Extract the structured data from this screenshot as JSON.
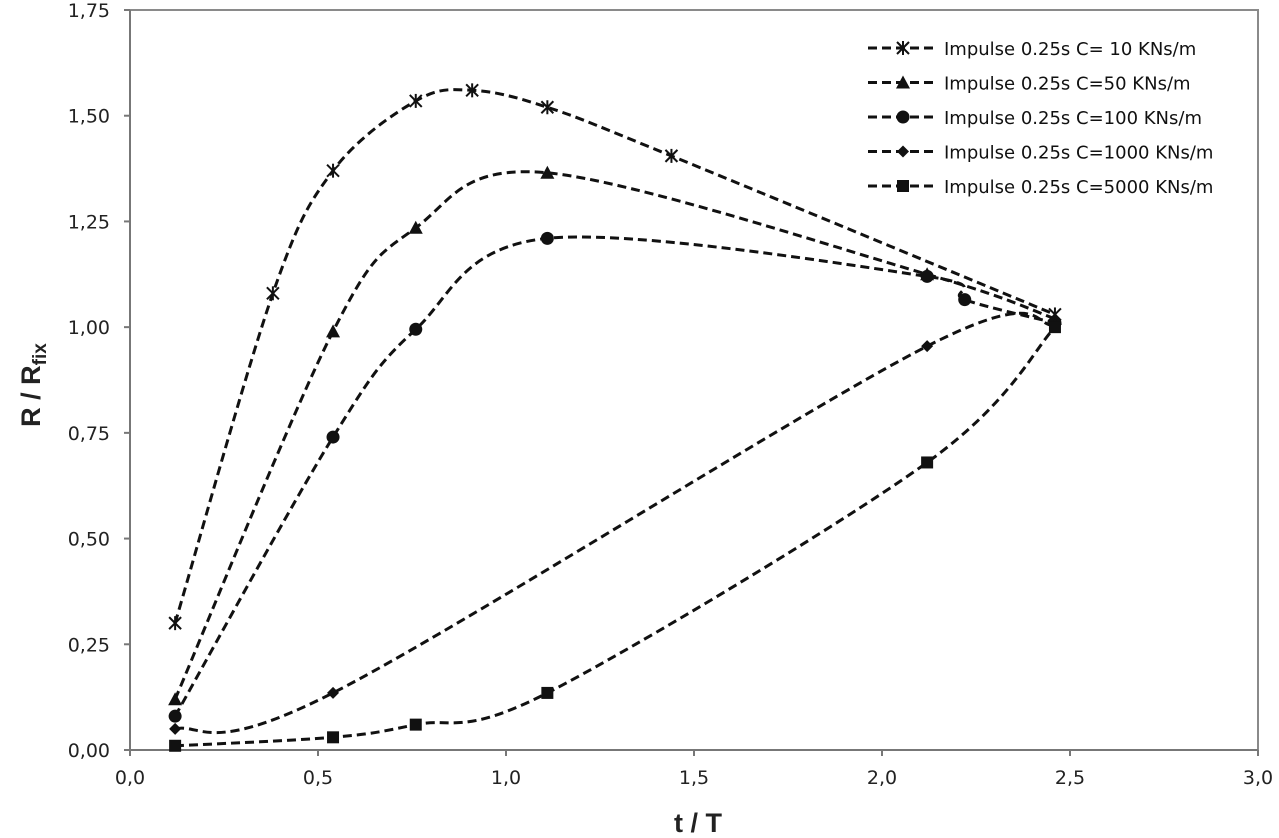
{
  "chart_data": {
    "type": "line",
    "xlabel": "t / T",
    "ylabel": {
      "main": "R / R",
      "sub": "fix"
    },
    "xlim": [
      0,
      3.0
    ],
    "ylim": [
      0,
      1.75
    ],
    "x_ticks": [
      "0,0",
      "0,5",
      "1,0",
      "1,5",
      "2,0",
      "2,5",
      "3,0"
    ],
    "y_ticks": [
      "0,00",
      "0,25",
      "0,50",
      "0,75",
      "1,00",
      "1,25",
      "1,50",
      "1,75"
    ],
    "grid": false,
    "legend_position": "top-right",
    "series": [
      {
        "name": "Impulse 0.25s C= 10 KNs/m",
        "marker": "asterisk",
        "x": [
          0.12,
          0.38,
          0.54,
          0.76,
          0.91,
          1.11,
          1.44,
          2.46
        ],
        "y": [
          0.3,
          1.08,
          1.37,
          1.535,
          1.56,
          1.52,
          1.405,
          1.03
        ]
      },
      {
        "name": "Impulse 0.25s C=50 KNs/m",
        "marker": "triangle",
        "x": [
          0.12,
          0.54,
          0.76,
          1.11,
          2.12,
          2.46
        ],
        "y": [
          0.12,
          0.99,
          1.235,
          1.365,
          1.125,
          1.02
        ]
      },
      {
        "name": "Impulse 0.25s C=100 KNs/m",
        "marker": "circle",
        "x": [
          0.12,
          0.54,
          0.76,
          1.11,
          2.12,
          2.22,
          2.46
        ],
        "y": [
          0.08,
          0.74,
          0.995,
          1.21,
          1.12,
          1.065,
          1.01
        ]
      },
      {
        "name": "Impulse 0.25s C=1000 KNs/m",
        "marker": "diamond",
        "x": [
          0.12,
          0.54,
          2.12,
          2.46
        ],
        "y": [
          0.05,
          0.135,
          0.955,
          1.005
        ]
      },
      {
        "name": "Impulse 0.25s C=5000 KNs/m",
        "marker": "square",
        "x": [
          0.12,
          0.54,
          0.76,
          1.11,
          2.12,
          2.46
        ],
        "y": [
          0.01,
          0.03,
          0.06,
          0.135,
          0.68,
          1.0
        ]
      }
    ]
  }
}
